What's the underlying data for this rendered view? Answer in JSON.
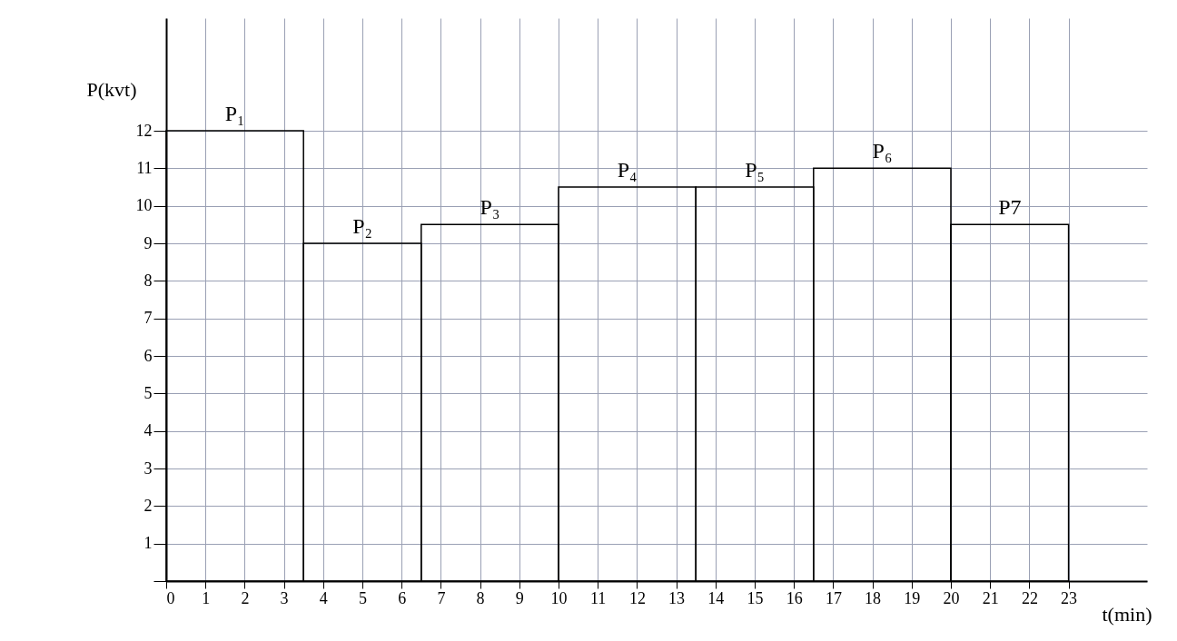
{
  "chart_data": {
    "type": "histogram",
    "xlabel": "t(min)",
    "ylabel": "P(kvt)",
    "bins": [
      0,
      3.5,
      6.5,
      10,
      13.5,
      16.5,
      20,
      23
    ],
    "values": [
      12,
      9,
      9.5,
      10.5,
      10.5,
      11,
      9.5
    ],
    "annotations": [
      {
        "text": "P₁",
        "x": 1.75,
        "y": 12
      },
      {
        "text": "P₂",
        "x": 5,
        "y": 9
      },
      {
        "text": "P₃",
        "x": 8.25,
        "y": 9.5
      },
      {
        "text": "P₄",
        "x": 11.75,
        "y": 10.5
      },
      {
        "text": "P₅",
        "x": 15,
        "y": 10.5
      },
      {
        "text": "P₆",
        "x": 18.25,
        "y": 11
      },
      {
        "text": "P7",
        "x": 21.5,
        "y": 9.5
      }
    ],
    "xlim": [
      0,
      25
    ],
    "ylim": [
      0,
      15
    ],
    "xticks": [
      0,
      1,
      2,
      3,
      4,
      5,
      6,
      7,
      8,
      9,
      10,
      11,
      12,
      13,
      14,
      15,
      16,
      17,
      18,
      19,
      20,
      21,
      22,
      23
    ],
    "yticks": [
      {
        "value": 0,
        "label": null
      },
      1,
      2,
      3,
      4,
      5,
      6,
      7,
      8,
      9,
      10,
      11,
      12
    ],
    "grid": true
  }
}
